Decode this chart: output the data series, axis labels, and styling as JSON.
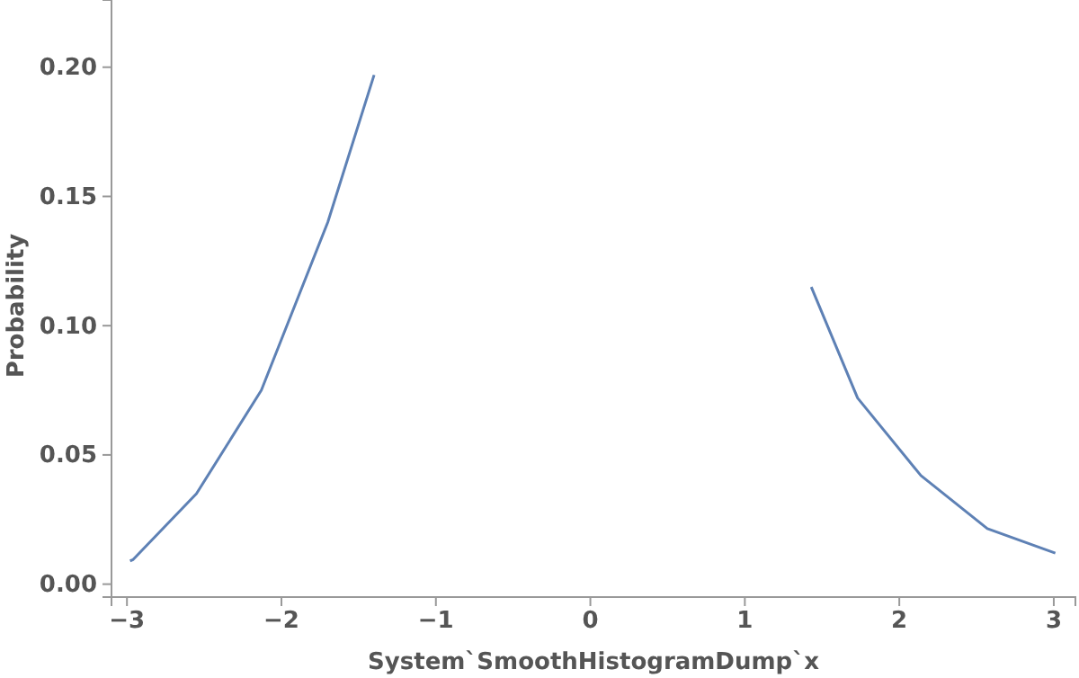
{
  "chart_data": {
    "type": "line",
    "xlabel": "System`SmoothHistogramDump`x",
    "ylabel": "Probability",
    "x": [
      -2.98,
      -2.96,
      -2.55,
      -2.13,
      -1.7,
      -1.4,
      0,
      1.43,
      1.73,
      2.14,
      2.57,
      3.01
    ],
    "series": [
      {
        "color": "#5e81b5",
        "values": [
          0.009,
          0.0095,
          0.035,
          0.075,
          0.14,
          0.197,
          null,
          0.115,
          0.072,
          0.042,
          0.0215,
          0.012
        ]
      }
    ],
    "xlim": [
      -3.1,
      3.14
    ],
    "ylim": [
      -0.005,
      0.226
    ],
    "xticks": [
      {
        "value": -3,
        "label": "−3"
      },
      {
        "value": -2,
        "label": "−2"
      },
      {
        "value": -1,
        "label": "−1"
      },
      0,
      1,
      2,
      3
    ],
    "yticks": [
      {
        "value": 0,
        "label": "0.00"
      },
      {
        "value": 0.05,
        "label": "0.05"
      },
      {
        "value": 0.1,
        "label": "0.10"
      },
      {
        "value": 0.15,
        "label": "0.15"
      },
      {
        "value": 0.2,
        "label": "0.20"
      }
    ],
    "grid": false,
    "marker": "none",
    "line_style": "solid"
  }
}
